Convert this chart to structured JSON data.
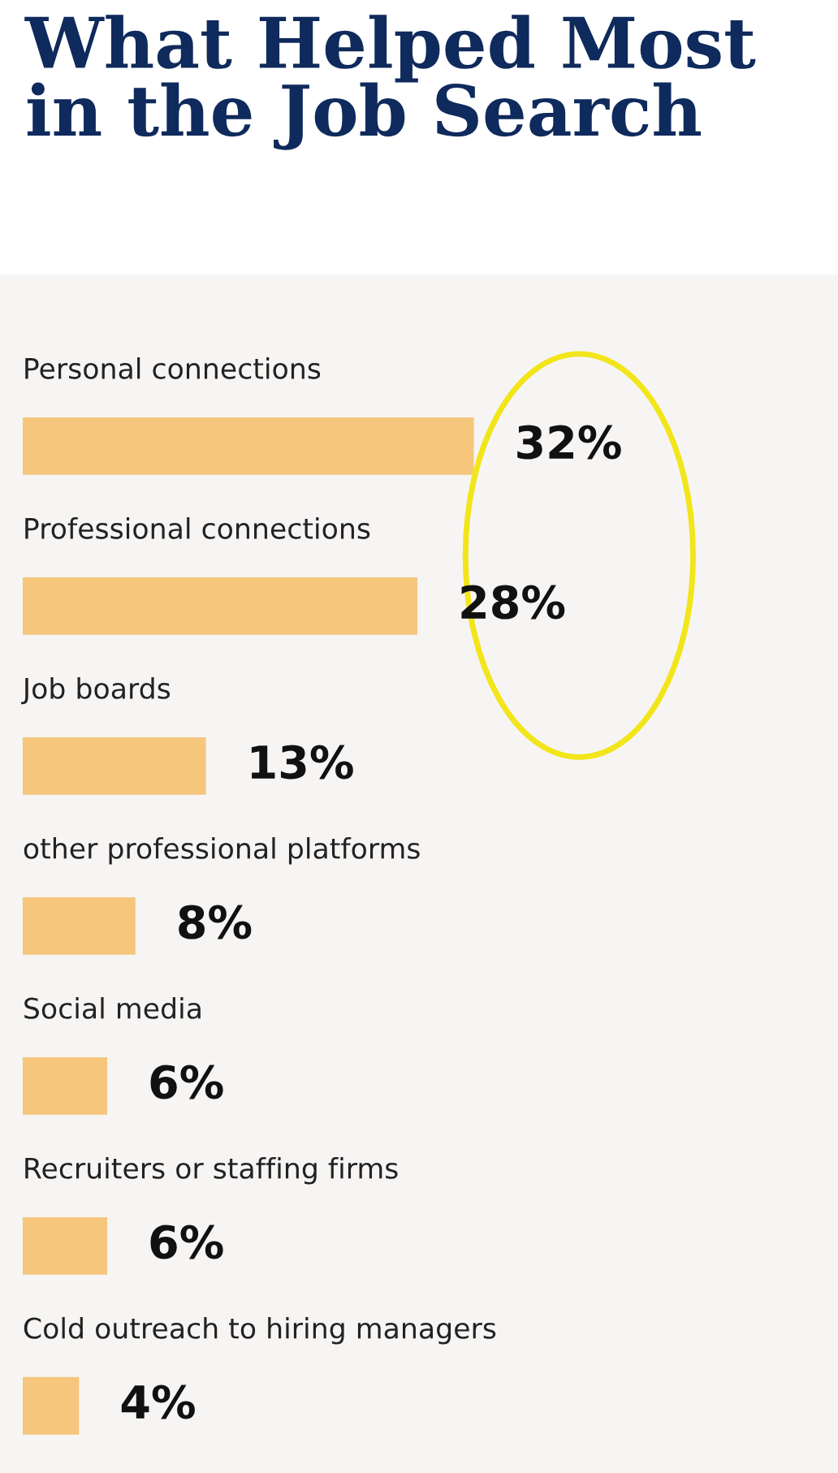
{
  "chart_data": {
    "type": "bar",
    "orientation": "horizontal",
    "title": "What Helped Most in the Job Search",
    "categories": [
      "Personal connections",
      "Professional connections",
      "Job boards",
      "other professional platforms",
      "Social media",
      "Recruiters or staffing firms",
      "Cold outreach to hiring managers"
    ],
    "values": [
      32,
      28,
      13,
      8,
      6,
      6,
      4
    ],
    "value_labels": [
      "32%",
      "28%",
      "13%",
      "8%",
      "6%",
      "6%",
      "4%"
    ],
    "color": "#f5c67c"
  }
}
